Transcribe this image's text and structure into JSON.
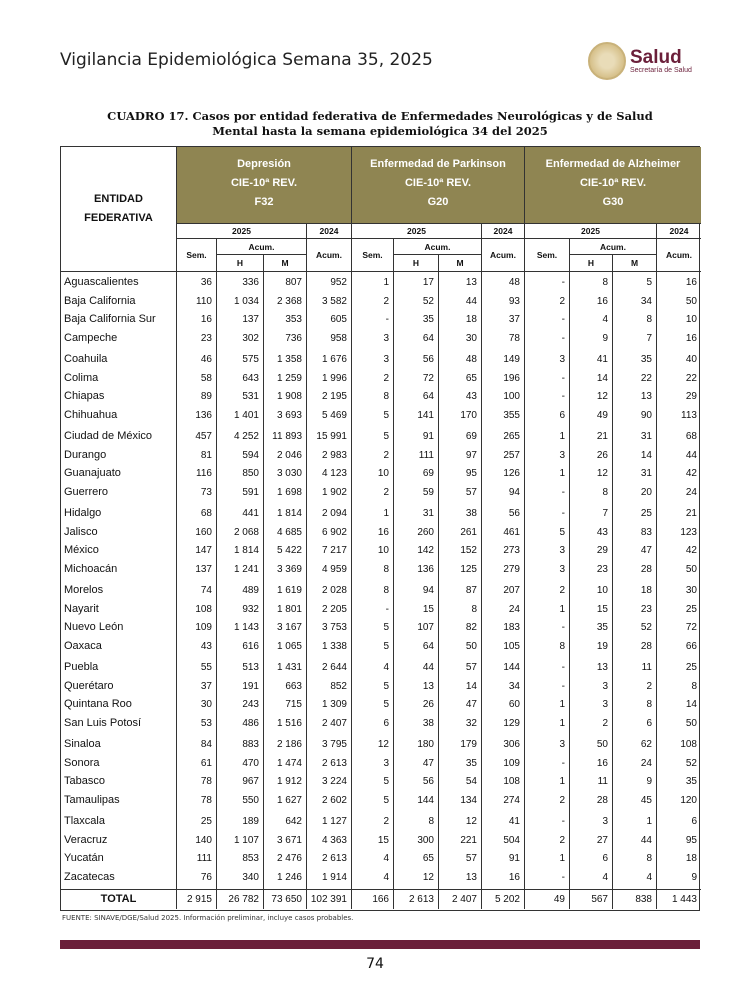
{
  "header": {
    "title": "Vigilancia Epidemiológica Semana 35, 2025",
    "logo_main": "Salud",
    "logo_sub": "Secretaría de Salud"
  },
  "caption": {
    "line1": "CUADRO 17.  Casos por entidad federativa de Enfermedades Neurológicas y de Salud",
    "line2": "Mental hasta la semana epidemiológica 34 del 2025"
  },
  "table": {
    "entity_header": [
      "ENTIDAD",
      "FEDERATIVA"
    ],
    "groups": [
      {
        "name": "Depresión",
        "cie": "CIE-10ª REV.",
        "code": "F32"
      },
      {
        "name": "Enfermedad de Parkinson",
        "cie": "CIE-10ª REV.",
        "code": "G20"
      },
      {
        "name": "Enfermedad de Alzheimer",
        "cie": "CIE-10ª REV.",
        "code": "G30"
      }
    ],
    "year_current": "2025",
    "year_prev": "2024",
    "sem": "Sem.",
    "acum": "Acum.",
    "h": "H",
    "m": "M",
    "rows": [
      [
        "Aguascalientes",
        "36",
        "336",
        "807",
        "952",
        "1",
        "17",
        "13",
        "48",
        "-",
        "8",
        "5",
        "16"
      ],
      [
        "Baja California",
        "110",
        "1 034",
        "2 368",
        "3 582",
        "2",
        "52",
        "44",
        "93",
        "2",
        "16",
        "34",
        "50"
      ],
      [
        "Baja California Sur",
        "16",
        "137",
        "353",
        "605",
        "-",
        "35",
        "18",
        "37",
        "-",
        "4",
        "8",
        "10"
      ],
      [
        "Campeche",
        "23",
        "302",
        "736",
        "958",
        "3",
        "64",
        "30",
        "78",
        "-",
        "9",
        "7",
        "16"
      ],
      [
        "Coahuila",
        "46",
        "575",
        "1 358",
        "1 676",
        "3",
        "56",
        "48",
        "149",
        "3",
        "41",
        "35",
        "40"
      ],
      [
        "Colima",
        "58",
        "643",
        "1 259",
        "1 996",
        "2",
        "72",
        "65",
        "196",
        "-",
        "14",
        "22",
        "22"
      ],
      [
        "Chiapas",
        "89",
        "531",
        "1 908",
        "2 195",
        "8",
        "64",
        "43",
        "100",
        "-",
        "12",
        "13",
        "29"
      ],
      [
        "Chihuahua",
        "136",
        "1 401",
        "3 693",
        "5 469",
        "5",
        "141",
        "170",
        "355",
        "6",
        "49",
        "90",
        "113"
      ],
      [
        "Ciudad de México",
        "457",
        "4 252",
        "11 893",
        "15 991",
        "5",
        "91",
        "69",
        "265",
        "1",
        "21",
        "31",
        "68"
      ],
      [
        "Durango",
        "81",
        "594",
        "2 046",
        "2 983",
        "2",
        "111",
        "97",
        "257",
        "3",
        "26",
        "14",
        "44"
      ],
      [
        "Guanajuato",
        "116",
        "850",
        "3 030",
        "4 123",
        "10",
        "69",
        "95",
        "126",
        "1",
        "12",
        "31",
        "42"
      ],
      [
        "Guerrero",
        "73",
        "591",
        "1 698",
        "1 902",
        "2",
        "59",
        "57",
        "94",
        "-",
        "8",
        "20",
        "24"
      ],
      [
        "Hidalgo",
        "68",
        "441",
        "1 814",
        "2 094",
        "1",
        "31",
        "38",
        "56",
        "-",
        "7",
        "25",
        "21"
      ],
      [
        "Jalisco",
        "160",
        "2 068",
        "4 685",
        "6 902",
        "16",
        "260",
        "261",
        "461",
        "5",
        "43",
        "83",
        "123"
      ],
      [
        "México",
        "147",
        "1 814",
        "5 422",
        "7 217",
        "10",
        "142",
        "152",
        "273",
        "3",
        "29",
        "47",
        "42"
      ],
      [
        "Michoacán",
        "137",
        "1 241",
        "3 369",
        "4 959",
        "8",
        "136",
        "125",
        "279",
        "3",
        "23",
        "28",
        "50"
      ],
      [
        "Morelos",
        "74",
        "489",
        "1 619",
        "2 028",
        "8",
        "94",
        "87",
        "207",
        "2",
        "10",
        "18",
        "30"
      ],
      [
        "Nayarit",
        "108",
        "932",
        "1 801",
        "2 205",
        "-",
        "15",
        "8",
        "24",
        "1",
        "15",
        "23",
        "25"
      ],
      [
        "Nuevo León",
        "109",
        "1 143",
        "3 167",
        "3 753",
        "5",
        "107",
        "82",
        "183",
        "-",
        "35",
        "52",
        "72"
      ],
      [
        "Oaxaca",
        "43",
        "616",
        "1 065",
        "1 338",
        "5",
        "64",
        "50",
        "105",
        "8",
        "19",
        "28",
        "66"
      ],
      [
        "Puebla",
        "55",
        "513",
        "1 431",
        "2 644",
        "4",
        "44",
        "57",
        "144",
        "-",
        "13",
        "11",
        "25"
      ],
      [
        "Querétaro",
        "37",
        "191",
        "663",
        "852",
        "5",
        "13",
        "14",
        "34",
        "-",
        "3",
        "2",
        "8"
      ],
      [
        "Quintana Roo",
        "30",
        "243",
        "715",
        "1 309",
        "5",
        "26",
        "47",
        "60",
        "1",
        "3",
        "8",
        "14"
      ],
      [
        "San Luis Potosí",
        "53",
        "486",
        "1 516",
        "2 407",
        "6",
        "38",
        "32",
        "129",
        "1",
        "2",
        "6",
        "50"
      ],
      [
        "Sinaloa",
        "84",
        "883",
        "2 186",
        "3 795",
        "12",
        "180",
        "179",
        "306",
        "3",
        "50",
        "62",
        "108"
      ],
      [
        "Sonora",
        "61",
        "470",
        "1 474",
        "2 613",
        "3",
        "47",
        "35",
        "109",
        "-",
        "16",
        "24",
        "52"
      ],
      [
        "Tabasco",
        "78",
        "967",
        "1 912",
        "3 224",
        "5",
        "56",
        "54",
        "108",
        "1",
        "11",
        "9",
        "35"
      ],
      [
        "Tamaulipas",
        "78",
        "550",
        "1 627",
        "2 602",
        "5",
        "144",
        "134",
        "274",
        "2",
        "28",
        "45",
        "120"
      ],
      [
        "Tlaxcala",
        "25",
        "189",
        "642",
        "1 127",
        "2",
        "8",
        "12",
        "41",
        "-",
        "3",
        "1",
        "6"
      ],
      [
        "Veracruz",
        "140",
        "1 107",
        "3 671",
        "4 363",
        "15",
        "300",
        "221",
        "504",
        "2",
        "27",
        "44",
        "95"
      ],
      [
        "Yucatán",
        "111",
        "853",
        "2 476",
        "2 613",
        "4",
        "65",
        "57",
        "91",
        "1",
        "6",
        "8",
        "18"
      ],
      [
        "Zacatecas",
        "76",
        "340",
        "1 246",
        "1 914",
        "4",
        "12",
        "13",
        "16",
        "-",
        "4",
        "4",
        "9"
      ]
    ],
    "total": [
      "TOTAL",
      "2 915",
      "26 782",
      "73 650",
      "102 391",
      "166",
      "2 613",
      "2 407",
      "5 202",
      "49",
      "567",
      "838",
      "1 443"
    ]
  },
  "footer": {
    "source": "FUENTE: SINAVE/DGE/Salud 2025. Información preliminar, incluye casos probables.",
    "page": "74"
  },
  "colors": {
    "header_band": "#8f8552",
    "accent": "#6b1f3a"
  }
}
